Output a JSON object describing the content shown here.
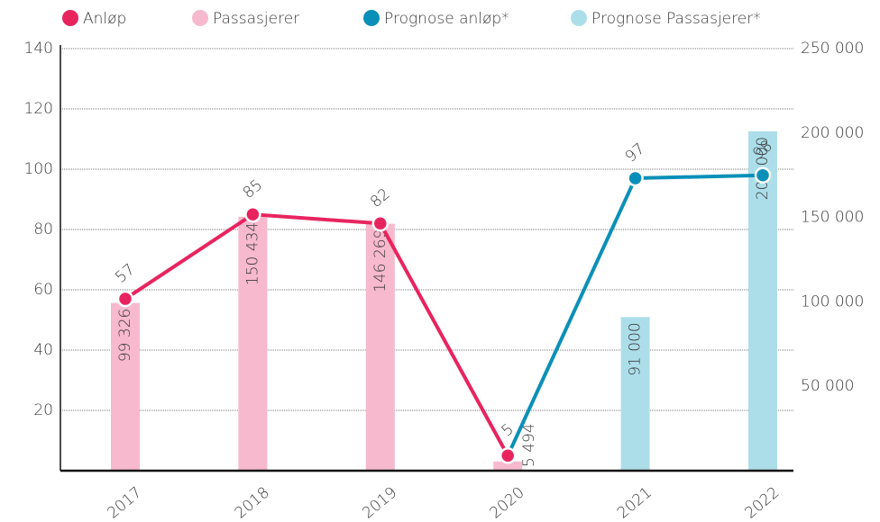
{
  "chart_data": {
    "type": "combo",
    "categories": [
      "2017",
      "2018",
      "2019",
      "2020",
      "2021",
      "2022"
    ],
    "series": [
      {
        "name": "Anløp",
        "type": "line",
        "color": "#e8245f",
        "values": [
          57,
          85,
          82,
          5,
          null,
          null
        ]
      },
      {
        "name": "Passasjerer",
        "type": "bar",
        "axis": "y2",
        "color": "#f7b9cd",
        "values": [
          99326,
          150434,
          146269,
          5494,
          null,
          null
        ],
        "value_labels": [
          "99 326",
          "150 434",
          "146 269",
          "5 494",
          null,
          null
        ]
      },
      {
        "name": "Prognose anløp*",
        "type": "line",
        "color": "#0a90b8",
        "values": [
          null,
          null,
          null,
          5,
          97,
          98
        ],
        "value_labels": [
          null,
          null,
          null,
          null,
          "97",
          "98"
        ]
      },
      {
        "name": "Prognose Passasjerer*",
        "type": "bar",
        "axis": "y2",
        "color": "#acdeea",
        "values": [
          null,
          null,
          null,
          null,
          91000,
          201000
        ],
        "value_labels": [
          null,
          null,
          null,
          null,
          "91 000",
          "201 000"
        ]
      }
    ],
    "ylim": [
      0,
      140
    ],
    "yticks": [
      20,
      40,
      60,
      80,
      100,
      120,
      140
    ],
    "y2lim": [
      0,
      250000
    ],
    "y2ticks": [
      {
        "value": 50000,
        "label": "50 000"
      },
      {
        "value": 100000,
        "label": "100 000"
      },
      {
        "value": 150000,
        "label": "150 000"
      },
      {
        "value": 200000,
        "label": "200 000"
      },
      {
        "value": 250000,
        "label": "250 000"
      }
    ],
    "grid": true
  }
}
